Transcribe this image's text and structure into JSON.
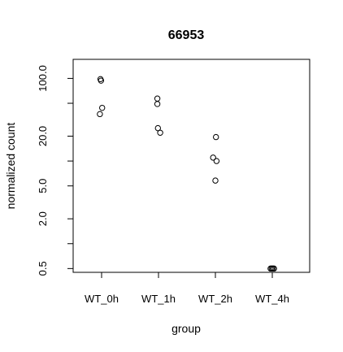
{
  "chart_data": {
    "type": "scatter",
    "title": "66953",
    "xlabel": "group",
    "ylabel": "normalized count",
    "y_scale": "log",
    "ylim": [
      0.45,
      170
    ],
    "y_ticks": [
      0.5,
      1,
      2,
      5,
      10,
      20,
      50,
      100
    ],
    "y_tick_labels": [
      "0.5",
      "",
      "2.0",
      "5.0",
      "",
      "20.0",
      "",
      "100.0"
    ],
    "categories": [
      "WT_0h",
      "WT_1h",
      "WT_2h",
      "WT_4h"
    ],
    "points": [
      {
        "group": "WT_0h",
        "y": 98,
        "jitter": -0.02
      },
      {
        "group": "WT_0h",
        "y": 94,
        "jitter": -0.01
      },
      {
        "group": "WT_0h",
        "y": 44,
        "jitter": 0.01
      },
      {
        "group": "WT_0h",
        "y": 37,
        "jitter": -0.03
      },
      {
        "group": "WT_1h",
        "y": 57,
        "jitter": -0.02
      },
      {
        "group": "WT_1h",
        "y": 49,
        "jitter": -0.02
      },
      {
        "group": "WT_1h",
        "y": 25,
        "jitter": -0.01
      },
      {
        "group": "WT_1h",
        "y": 22,
        "jitter": 0.03
      },
      {
        "group": "WT_2h",
        "y": 19.5,
        "jitter": 0.01
      },
      {
        "group": "WT_2h",
        "y": 11,
        "jitter": -0.04
      },
      {
        "group": "WT_2h",
        "y": 10,
        "jitter": 0.02
      },
      {
        "group": "WT_2h",
        "y": 5.8,
        "jitter": 0.0
      },
      {
        "group": "WT_4h",
        "y": 0.5,
        "jitter": -0.03
      },
      {
        "group": "WT_4h",
        "y": 0.5,
        "jitter": -0.01
      },
      {
        "group": "WT_4h",
        "y": 0.5,
        "jitter": 0.01
      },
      {
        "group": "WT_4h",
        "y": 0.5,
        "jitter": 0.03
      }
    ],
    "grid": false,
    "legend": "none"
  }
}
